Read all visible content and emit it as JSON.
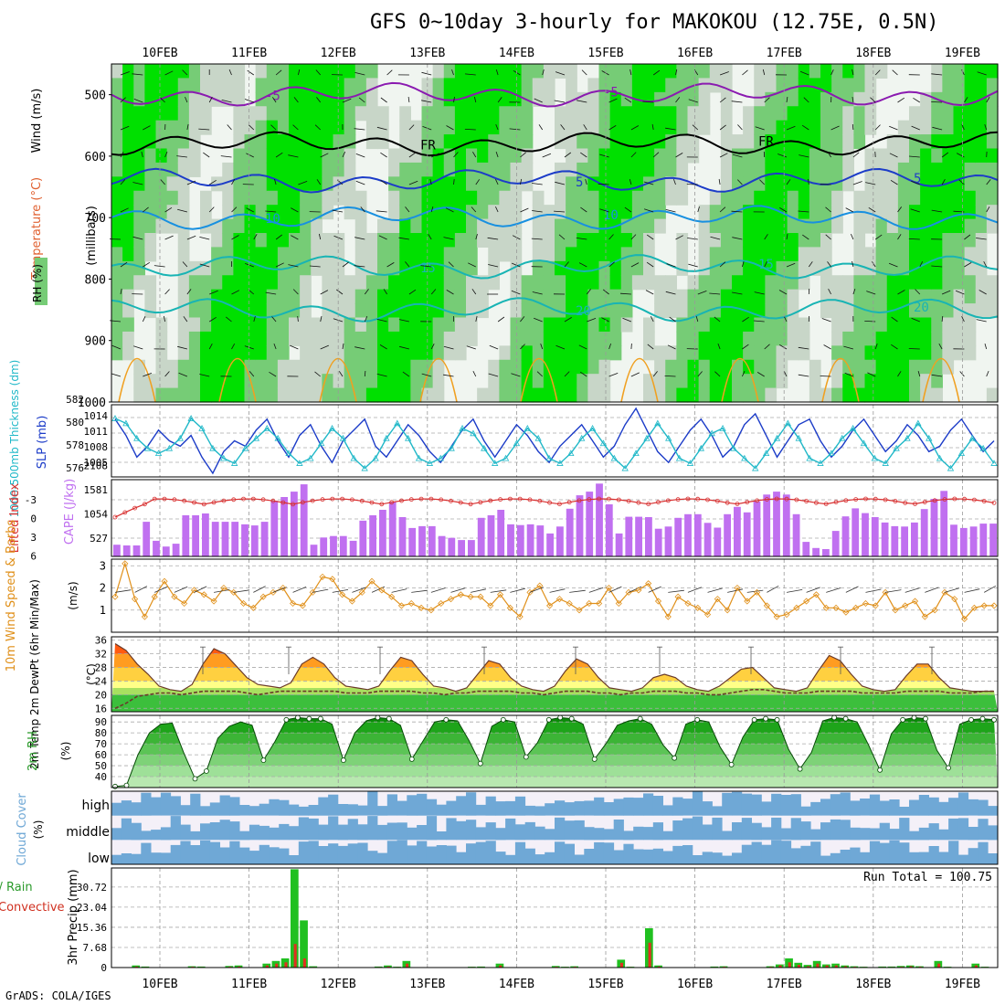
{
  "title": "GFS 0~10day 3-hourly for MAKOKOU (12.75E, 0.5N)",
  "credit": "GrADS: COLA/IGES",
  "dates": [
    "10FEB",
    "11FEB",
    "12FEB",
    "13FEB",
    "14FEB",
    "15FEB",
    "16FEB",
    "17FEB",
    "18FEB",
    "19FEB"
  ],
  "colors": {
    "rh_dark": "#00e000",
    "rh_mid": "#76cc76",
    "rh_light": "#c8d6c8",
    "temp_purple": "#8a1ab0",
    "temp_blue": "#1c3cc8",
    "temp_lightblue": "#1890e0",
    "temp_cyan": "#18b4b4",
    "temp_orange": "#f0a020",
    "slp": "#1c3cc8",
    "thickness": "#20b8c8",
    "cape": "#c070f0",
    "lifted": "#d83030",
    "wind": "#e0901a",
    "cloud": "#6fa8d6",
    "cloud_bg": "#f4f0f8",
    "precip_total": "#20c020",
    "precip_conv": "#e03020"
  },
  "chart_data": [
    {
      "type": "heatmap",
      "panel": "upper-air",
      "ylabel_rh": "RH (%)",
      "ylabel_temp": "Temperature (°C)",
      "ylabel_wind": "Wind (m/s)",
      "ylabel_units": "(millibars)",
      "yticks": [
        500,
        600,
        700,
        800,
        900,
        1000
      ],
      "ylim": [
        450,
        1000
      ],
      "temperature_contours": [
        {
          "label": "-5",
          "level_mb": 500
        },
        {
          "label": "FR",
          "level_mb": 580
        },
        {
          "label": "5",
          "level_mb": 640
        },
        {
          "label": "10",
          "level_mb": 700
        },
        {
          "label": "15",
          "level_mb": 780
        },
        {
          "label": "20",
          "level_mb": 850
        }
      ]
    },
    {
      "type": "line",
      "panel": "slp-thickness",
      "ylabel_left": "1000-500mb Thickness (dm)",
      "ylabel_right": "SLP (mb)",
      "yticks_left": [
        576,
        578,
        580,
        582
      ],
      "yticks_right": [
        1005,
        1008,
        1011,
        1014
      ],
      "series": [
        {
          "name": "SLP",
          "axis": "right",
          "values": [
            1013,
            1010,
            1006,
            1008,
            1011,
            1009,
            1008,
            1010,
            1006,
            1003,
            1007,
            1009,
            1008,
            1011,
            1013,
            1009,
            1006,
            1010,
            1012,
            1008,
            1005,
            1009,
            1011,
            1013,
            1008,
            1006,
            1009,
            1012,
            1010,
            1007,
            1005,
            1008,
            1011,
            1013,
            1009,
            1006,
            1009,
            1012,
            1010,
            1007,
            1005,
            1008,
            1010,
            1012,
            1009,
            1006,
            1008,
            1012,
            1015,
            1011,
            1007,
            1005,
            1008,
            1011,
            1013,
            1010,
            1006,
            1008,
            1012,
            1014,
            1010,
            1006,
            1009,
            1012,
            1013,
            1009,
            1006,
            1008,
            1011,
            1013,
            1010,
            1007,
            1009,
            1012,
            1010,
            1007,
            1008,
            1011,
            1013,
            1010,
            1007,
            1009
          ]
        },
        {
          "name": "Thickness",
          "axis": "left",
          "values": [
            581,
            580.5,
            579,
            578,
            577.5,
            578,
            579,
            581,
            580,
            578,
            577,
            576.5,
            578,
            579,
            580,
            579,
            577.5,
            576.5,
            577,
            578.5,
            580,
            579,
            577,
            576,
            577,
            579,
            580.5,
            579,
            577,
            576.5,
            577,
            578,
            580,
            579.5,
            578,
            576.5,
            577,
            578.5,
            580,
            579,
            577,
            576.5,
            577.5,
            579,
            580,
            578.5,
            577,
            576,
            577.5,
            579,
            580.5,
            579,
            577,
            576.5,
            578,
            579.5,
            580,
            578,
            577,
            576,
            577.5,
            579,
            580.5,
            579,
            577,
            576.5,
            577.5,
            579,
            580,
            578.5,
            577,
            576.5,
            578,
            579,
            580.5,
            579,
            577,
            576,
            577.5,
            579,
            578,
            576.5
          ]
        }
      ]
    },
    {
      "type": "bar",
      "panel": "cape-lifted",
      "ylabel_left": "Lifted Index",
      "ylabel_right": "CAPE (J/kg)",
      "yticks_left": [
        -3,
        0,
        3,
        6
      ],
      "yticks_right": [
        527,
        1054,
        1581,
        2108
      ],
      "cape_values": [
        320,
        300,
        300,
        950,
        430,
        270,
        350,
        1130,
        1130,
        1180,
        950,
        950,
        950,
        880,
        850,
        950,
        1530,
        1630,
        1780,
        1980,
        320,
        520,
        560,
        560,
        430,
        980,
        1130,
        1280,
        1500,
        1080,
        780,
        830,
        830,
        560,
        510,
        450,
        450,
        1060,
        1130,
        1280,
        880,
        860,
        880,
        850,
        630,
        820,
        1310,
        1680,
        1780,
        2000,
        1430,
        630,
        1090,
        1090,
        1080,
        760,
        820,
        1060,
        1160,
        1160,
        920,
        790,
        1160,
        1360,
        1210,
        1510,
        1700,
        1780,
        1700,
        1160,
        400,
        230,
        200,
        700,
        1100,
        1320,
        1190,
        1080,
        930,
        830,
        820,
        930,
        1300,
        1580,
        1800,
        870,
        780,
        820,
        900,
        900
      ]
    },
    {
      "type": "line",
      "panel": "wind10m",
      "ylabel": "10m Wind Speed & Barbs",
      "yunits": "(m/s)",
      "yticks": [
        1,
        2,
        3
      ],
      "ylim": [
        0,
        3.3
      ],
      "values": [
        1.6,
        3.1,
        1.5,
        0.7,
        1.6,
        2.3,
        1.6,
        1.3,
        1.9,
        1.7,
        1.4,
        2,
        1.8,
        1.3,
        1.1,
        1.6,
        1.8,
        2,
        1.3,
        1.2,
        1.8,
        2.5,
        2.4,
        1.7,
        1.4,
        1.8,
        2.3,
        1.9,
        1.6,
        1.2,
        1.3,
        1.1,
        1,
        1.3,
        1.5,
        1.7,
        1.6,
        1.6,
        1.2,
        1.7,
        1.1,
        0.7,
        1.8,
        2.1,
        1.2,
        1.5,
        1.3,
        1,
        1.3,
        1.3,
        2,
        1.3,
        1.8,
        1.9,
        2.2,
        1.4,
        0.7,
        1.6,
        1.3,
        1.1,
        0.8,
        1.5,
        1,
        2,
        1.4,
        1.8,
        1.2,
        0.7,
        0.8,
        1.1,
        1.4,
        1.7,
        1.1,
        1.1,
        0.9,
        1.1,
        1.3,
        1.2,
        1.8,
        1,
        1.2,
        1.4,
        0.7,
        1,
        1.8,
        1.5,
        0.6,
        1.1,
        1.2,
        1.2
      ]
    },
    {
      "type": "area",
      "panel": "temp2m",
      "ylabel": "2m Temp 2m DewPt (6hr Min/Max)",
      "yunits": "(°C)",
      "yticks": [
        16,
        20,
        24,
        28,
        32,
        36
      ],
      "ylim": [
        15,
        37
      ],
      "temperature": [
        35,
        33,
        29,
        26,
        22.5,
        21.5,
        21,
        23,
        29,
        33.5,
        32,
        28.5,
        25,
        23,
        22.5,
        22,
        23.5,
        29,
        31,
        29,
        25,
        22.5,
        22,
        21.5,
        22.5,
        27,
        31,
        30,
        26,
        22.5,
        22,
        21,
        22,
        26,
        30,
        29,
        25,
        22.5,
        21.5,
        21,
        22.5,
        27,
        30.5,
        29,
        25,
        22,
        21.5,
        21,
        22,
        25,
        26,
        25,
        22.5,
        21.5,
        21,
        22.5,
        25,
        27.5,
        28,
        25,
        22,
        21.5,
        21,
        22,
        27,
        31.5,
        30,
        26,
        22.5,
        21.5,
        21,
        21.5,
        25.5,
        29,
        29,
        25,
        22,
        21.5,
        21,
        21,
        21
      ],
      "dewpoint": [
        16,
        17.5,
        19.5,
        20,
        20.5,
        20.5,
        20,
        20.5,
        21,
        21,
        21,
        21,
        20.5,
        20,
        20.5,
        21,
        21,
        21,
        21,
        21,
        21,
        20.5,
        20.5,
        20.5,
        21,
        21,
        21,
        21,
        20.5,
        20.5,
        20,
        20.5,
        20.5,
        21,
        21,
        21,
        21,
        20.5,
        20.5,
        20,
        20.5,
        21,
        21,
        21,
        20.5,
        20.5,
        20,
        20.5,
        20.5,
        21,
        21,
        21,
        20.5,
        20.5,
        20,
        20,
        20.5,
        21,
        21.5,
        21.5,
        21,
        20.5,
        20.5,
        20.5,
        21,
        21,
        21,
        21,
        20.5,
        20.5,
        20.5,
        20.5,
        21,
        21,
        21,
        21,
        20.5,
        20.5,
        20.5,
        21,
        21
      ]
    },
    {
      "type": "area",
      "panel": "rh2m",
      "ylabel": "2m RH",
      "yunits": "(%)",
      "yticks": [
        40,
        50,
        60,
        70,
        80,
        90
      ],
      "ylim": [
        30,
        96
      ],
      "values": [
        31,
        32,
        60,
        80,
        88,
        89,
        62,
        38,
        45,
        75,
        86,
        90,
        87,
        55,
        72,
        92,
        94,
        93,
        93,
        88,
        55,
        80,
        91,
        94,
        93,
        87,
        56,
        73,
        90,
        92,
        91,
        73,
        52,
        86,
        92,
        90,
        58,
        71,
        92,
        94,
        93,
        88,
        56,
        70,
        87,
        91,
        93,
        88,
        69,
        57,
        88,
        92,
        90,
        67,
        51,
        76,
        92,
        93,
        92,
        65,
        47,
        62,
        91,
        94,
        93,
        90,
        69,
        46,
        79,
        92,
        94,
        93,
        64,
        48,
        88,
        92,
        93,
        92
      ]
    },
    {
      "type": "heatmap",
      "panel": "cloud",
      "ylabel": "Cloud Cover",
      "yunits": "(%)",
      "levels": [
        "high",
        "middle",
        "low"
      ]
    },
    {
      "type": "bar",
      "panel": "precip",
      "ylabel": "3hr Precip (mm)",
      "legend_total": "Total / Rain",
      "legend_conv": "Convective",
      "run_total_label": "Run Total = 100.75",
      "yticks": [
        0,
        7.68,
        15.36,
        23.04,
        30.72
      ],
      "ylim": [
        0,
        38
      ],
      "total": [
        0,
        0,
        0.8,
        0.4,
        0,
        0,
        0,
        0,
        0.5,
        0.4,
        0,
        0,
        0.6,
        0.8,
        0,
        0,
        1.5,
        2.5,
        3.5,
        37.5,
        18,
        0.5,
        0,
        0,
        0,
        0,
        0,
        0,
        0.4,
        0.8,
        0.3,
        2.5,
        0,
        0,
        0,
        0,
        0,
        0,
        0.3,
        0.4,
        0,
        1.5,
        0,
        0,
        0,
        0,
        0,
        0.6,
        0.3,
        0.5,
        0,
        0,
        0,
        0,
        3,
        0.3,
        0,
        15,
        0.8,
        0,
        0,
        0,
        0,
        0,
        0.4,
        0.5,
        0,
        0,
        0,
        0,
        0.5,
        1.2,
        3.5,
        1.8,
        1,
        2.5,
        1.2,
        1.5,
        0.8,
        0.5,
        0.3,
        0,
        0.4,
        0.4,
        0.6,
        0.8,
        0.5,
        0,
        2.5,
        0.3,
        0,
        0,
        1.5,
        0.3,
        0
      ],
      "convective": [
        0,
        0,
        0.4,
        0.2,
        0,
        0,
        0,
        0,
        0.3,
        0.2,
        0,
        0,
        0.3,
        0.4,
        0,
        0,
        0.8,
        1.5,
        2,
        9,
        3.5,
        0.2,
        0,
        0,
        0,
        0,
        0,
        0,
        0.2,
        0.4,
        0.2,
        1.5,
        0,
        0,
        0,
        0,
        0,
        0,
        0.2,
        0.2,
        0,
        0.8,
        0,
        0,
        0,
        0,
        0,
        0.3,
        0.2,
        0.3,
        0,
        0,
        0,
        0,
        1.8,
        0.2,
        0,
        9.5,
        0.4,
        0,
        0,
        0,
        0,
        0,
        0.2,
        0.3,
        0,
        0,
        0,
        0,
        0.3,
        0.8,
        2,
        1,
        0.5,
        1.5,
        0.8,
        0.8,
        0.5,
        0.3,
        0.2,
        0,
        0.2,
        0.2,
        0.3,
        0.5,
        0.3,
        0,
        1.5,
        0.2,
        0,
        0,
        0.8,
        0.2,
        0
      ]
    }
  ]
}
